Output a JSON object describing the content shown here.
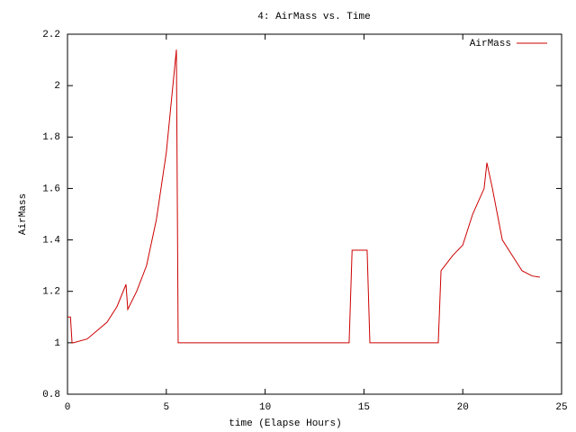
{
  "chart_data": {
    "type": "line",
    "title": "4: AirMass vs. Time",
    "xlabel": "time (Elapse Hours)",
    "ylabel": "AirMass",
    "series": [
      {
        "name": "AirMass",
        "color": "#cc0000",
        "x": [
          0,
          0.15,
          0.23,
          0.3,
          1,
          2,
          2.5,
          2.96,
          3.05,
          3.5,
          4,
          4.5,
          5,
          5.51,
          5.6,
          14.25,
          14.4,
          15.16,
          15.3,
          18.76,
          18.9,
          19.5,
          20,
          20.5,
          21.08,
          21.22,
          21.5,
          22,
          22.5,
          23,
          23.5,
          23.9
        ],
        "values": [
          1.1,
          1.1,
          1.0,
          1.0,
          1.015,
          1.08,
          1.14,
          1.227,
          1.13,
          1.2,
          1.3,
          1.48,
          1.74,
          2.14,
          1.0,
          1.0,
          1.36,
          1.36,
          1.0,
          1.0,
          1.28,
          1.34,
          1.38,
          1.5,
          1.6,
          1.7,
          1.6,
          1.4,
          1.34,
          1.28,
          1.26,
          1.255
        ]
      }
    ],
    "xlim": [
      0,
      25
    ],
    "xticks": [
      0,
      5,
      10,
      15,
      20,
      25
    ],
    "ylim": [
      0.8,
      2.2
    ],
    "yticks": [
      0.8,
      1,
      1.2,
      1.4,
      1.6,
      1.8,
      2,
      2.2
    ],
    "legend": "top-right"
  }
}
